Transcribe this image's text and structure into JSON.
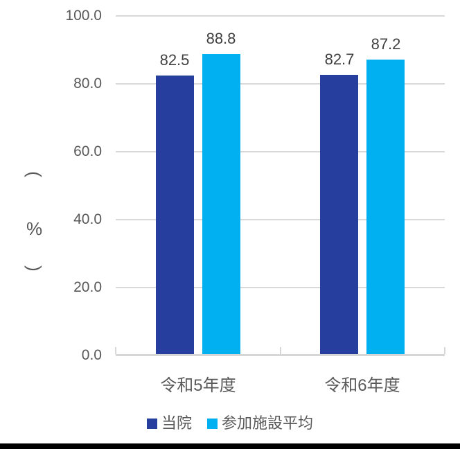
{
  "chart_data": {
    "type": "bar",
    "categories": [
      "令和5年度",
      "令和6年度"
    ],
    "series": [
      {
        "name": "当院",
        "color": "#263E9E",
        "values": [
          82.5,
          82.7
        ]
      },
      {
        "name": "参加施設平均",
        "color": "#00B0F0",
        "values": [
          88.8,
          87.2
        ]
      }
    ],
    "data_labels": [
      [
        "82.5",
        "82.7"
      ],
      [
        "88.8",
        "87.2"
      ]
    ],
    "title": "",
    "xlabel": "",
    "ylabel": "（％）",
    "ylim": [
      0,
      100
    ],
    "yticks": [
      {
        "value": 100,
        "label": "100.0"
      },
      {
        "value": 80,
        "label": "80.0"
      },
      {
        "value": 60,
        "label": "60.0"
      },
      {
        "value": 40,
        "label": "40.0"
      },
      {
        "value": 20,
        "label": "20.0"
      },
      {
        "value": 0,
        "label": "0.0"
      }
    ],
    "grid": "horizontal",
    "legend_position": "bottom"
  },
  "ylabel_display": {
    "open": "(",
    "symbol": "%",
    "close": ")"
  },
  "colors": {
    "series_1": "#263E9E",
    "series_2": "#00B0F0",
    "gridline": "#D9D9D9",
    "axis_line": "#D6D6D6",
    "tick_mark": "#D6D6D6",
    "ytick_text": "#595959",
    "xtick_text": "#595959",
    "data_label_text": "#404040",
    "legend_text": "#595959",
    "background": "#FFFFFF",
    "bottom_strip": "#000000"
  }
}
